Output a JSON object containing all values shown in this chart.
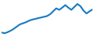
{
  "values": [
    1.0,
    0.8,
    1.1,
    1.5,
    2.0,
    2.6,
    3.2,
    3.5,
    3.8,
    4.2,
    4.5,
    4.7,
    4.9,
    5.1,
    5.3,
    5.5,
    6.0,
    6.8,
    7.6,
    7.2,
    7.8,
    8.5,
    7.8,
    7.2,
    8.0,
    8.8,
    8.2,
    7.0,
    6.2,
    6.8,
    7.3
  ],
  "line_color": "#1a7abf",
  "background_color": "#ffffff",
  "ylim_min": 0.2,
  "ylim_max": 9.5,
  "linewidth": 1.5
}
